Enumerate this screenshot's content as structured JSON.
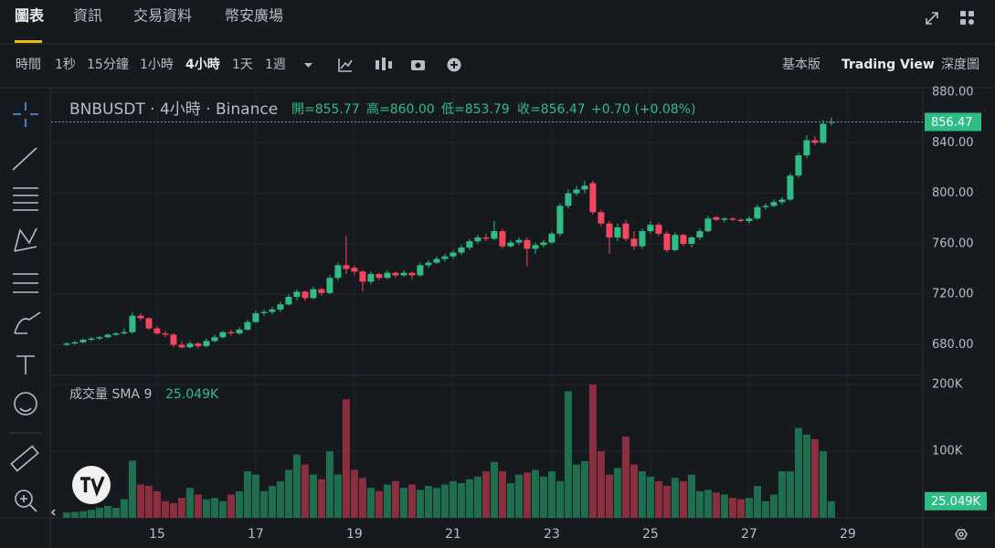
{
  "tabs": [
    "圖表",
    "資訊",
    "交易資料",
    "幣安廣場"
  ],
  "active_tab": 0,
  "intervals": [
    "時間",
    "1秒",
    "15分鐘",
    "1小時",
    "4小時",
    "1天",
    "1週"
  ],
  "active_interval": 4,
  "views": [
    "基本版",
    "Trading View",
    "深度圖"
  ],
  "active_view": 1,
  "chart_data": {
    "type": "candlestick",
    "legend": {
      "symbol": "BNBUSDT · 4小時 · Binance",
      "open": "開=855.77",
      "high": "高=860.00",
      "low": "低=853.79",
      "close": "收=856.47",
      "change": "+0.70 (+0.08%)"
    },
    "x": [
      13.167,
      13.333,
      13.5,
      13.667,
      13.833,
      14,
      14.167,
      14.333,
      14.5,
      14.667,
      14.833,
      15,
      15.167,
      15.333,
      15.5,
      15.667,
      15.833,
      16,
      16.167,
      16.333,
      16.5,
      16.667,
      16.833,
      17,
      17.167,
      17.333,
      17.5,
      17.667,
      17.833,
      18,
      18.167,
      18.333,
      18.5,
      18.667,
      18.833,
      19,
      19.167,
      19.333,
      19.5,
      19.667,
      19.833,
      20,
      20.167,
      20.333,
      20.5,
      20.667,
      20.833,
      21,
      21.167,
      21.333,
      21.5,
      21.667,
      21.833,
      22,
      22.167,
      22.333,
      22.5,
      22.667,
      22.833,
      23,
      23.167,
      23.333,
      23.5,
      23.667,
      23.833,
      24,
      24.167,
      24.333,
      24.5,
      24.667,
      24.833,
      25,
      25.167,
      25.333,
      25.5,
      25.667,
      25.833,
      26,
      26.167,
      26.333,
      26.5,
      26.667,
      26.833,
      27,
      27.167,
      27.333,
      27.5,
      27.667,
      27.833,
      28,
      28.167,
      28.333,
      28.5,
      28.667
    ],
    "xlim": [
      13.02,
      30.52
    ],
    "xticks": [
      15,
      17,
      19,
      21,
      23,
      25,
      27,
      29
    ],
    "candles": [
      [
        680,
        682,
        679,
        681
      ],
      [
        681,
        683,
        680,
        682
      ],
      [
        682,
        685,
        681,
        684
      ],
      [
        684,
        686,
        683,
        685
      ],
      [
        685,
        687,
        684,
        686
      ],
      [
        686,
        689,
        685,
        688
      ],
      [
        688,
        690,
        687,
        689
      ],
      [
        689,
        693,
        688,
        690
      ],
      [
        690,
        706,
        689,
        703
      ],
      [
        703,
        705,
        699,
        701
      ],
      [
        701,
        702,
        692,
        693
      ],
      [
        693,
        695,
        688,
        689
      ],
      [
        689,
        691,
        686,
        688
      ],
      [
        688,
        689,
        678,
        680
      ],
      [
        680,
        683,
        677,
        678
      ],
      [
        678,
        683,
        677,
        681
      ],
      [
        681,
        682,
        677,
        679
      ],
      [
        679,
        685,
        678,
        683
      ],
      [
        683,
        688,
        682,
        686
      ],
      [
        686,
        691,
        685,
        690
      ],
      [
        690,
        692,
        687,
        689
      ],
      [
        689,
        694,
        688,
        692
      ],
      [
        692,
        700,
        691,
        698
      ],
      [
        698,
        707,
        697,
        705
      ],
      [
        705,
        708,
        703,
        706
      ],
      [
        706,
        710,
        704,
        708
      ],
      [
        708,
        714,
        706,
        712
      ],
      [
        712,
        720,
        711,
        718
      ],
      [
        718,
        724,
        715,
        722
      ],
      [
        722,
        723,
        715,
        717
      ],
      [
        717,
        726,
        716,
        724
      ],
      [
        724,
        725,
        719,
        721
      ],
      [
        721,
        735,
        720,
        733
      ],
      [
        733,
        745,
        731,
        743
      ],
      [
        743,
        766,
        736,
        740
      ],
      [
        741,
        743,
        735,
        738
      ],
      [
        738,
        739,
        722,
        730
      ],
      [
        730,
        738,
        728,
        736
      ],
      [
        736,
        737,
        731,
        733
      ],
      [
        733,
        739,
        732,
        737
      ],
      [
        737,
        738,
        733,
        735
      ],
      [
        735,
        739,
        734,
        737
      ],
      [
        737,
        738,
        732,
        735
      ],
      [
        735,
        745,
        734,
        743
      ],
      [
        743,
        747,
        741,
        745
      ],
      [
        745,
        750,
        744,
        748
      ],
      [
        748,
        752,
        746,
        750
      ],
      [
        750,
        755,
        748,
        753
      ],
      [
        753,
        759,
        751,
        757
      ],
      [
        757,
        764,
        755,
        762
      ],
      [
        762,
        767,
        760,
        765
      ],
      [
        765,
        768,
        762,
        764
      ],
      [
        764,
        778,
        763,
        770
      ],
      [
        770,
        772,
        756,
        758
      ],
      [
        758,
        763,
        757,
        761
      ],
      [
        761,
        765,
        759,
        763
      ],
      [
        763,
        765,
        742,
        756
      ],
      [
        756,
        761,
        752,
        759
      ],
      [
        759,
        763,
        757,
        761
      ],
      [
        761,
        770,
        760,
        768
      ],
      [
        768,
        792,
        766,
        790
      ],
      [
        790,
        803,
        788,
        800
      ],
      [
        800,
        806,
        798,
        803
      ],
      [
        803,
        810,
        800,
        806
      ],
      [
        808,
        810,
        783,
        785
      ],
      [
        785,
        787,
        774,
        776
      ],
      [
        776,
        778,
        752,
        765
      ],
      [
        765,
        776,
        762,
        773
      ],
      [
        776,
        779,
        762,
        764
      ],
      [
        764,
        770,
        755,
        758
      ],
      [
        758,
        772,
        756,
        770
      ],
      [
        770,
        778,
        768,
        775
      ],
      [
        775,
        777,
        766,
        768
      ],
      [
        768,
        770,
        753,
        755
      ],
      [
        755,
        769,
        754,
        767
      ],
      [
        767,
        768,
        758,
        760
      ],
      [
        760,
        766,
        757,
        765
      ],
      [
        765,
        772,
        763,
        770
      ],
      [
        770,
        782,
        769,
        780
      ],
      [
        781,
        782,
        778,
        779
      ],
      [
        779,
        781,
        777,
        780
      ],
      [
        780,
        781,
        778,
        779
      ],
      [
        779,
        780,
        777,
        778
      ],
      [
        778,
        782,
        776,
        780
      ],
      [
        780,
        791,
        779,
        789
      ],
      [
        789,
        792,
        787,
        790
      ],
      [
        790,
        795,
        789,
        793
      ],
      [
        793,
        797,
        791,
        795
      ],
      [
        795,
        816,
        794,
        814
      ],
      [
        814,
        832,
        812,
        830
      ],
      [
        830,
        846,
        828,
        842
      ],
      [
        842,
        845,
        838,
        840
      ],
      [
        840,
        858,
        839,
        855
      ],
      [
        855.77,
        860,
        853.79,
        856.47
      ]
    ],
    "up_color": "#2ebd85",
    "down_color": "#f6465d",
    "ylim": [
      656.5,
      886.5
    ],
    "yticks": [
      {
        "value": 680,
        "label": "680.00"
      },
      {
        "value": 720,
        "label": "720.00"
      },
      {
        "value": 760,
        "label": "760.00"
      },
      {
        "value": 800,
        "label": "800.00"
      },
      {
        "value": 840,
        "label": "840.00"
      },
      {
        "value": 880,
        "label": "880.00"
      }
    ],
    "grid": true,
    "volume": {
      "title": "成交量 SMA 9",
      "values": [
        8,
        9,
        10,
        12,
        15,
        18,
        15,
        28,
        86,
        50,
        48,
        40,
        25,
        22,
        30,
        45,
        35,
        28,
        30,
        25,
        35,
        40,
        70,
        65,
        40,
        48,
        55,
        72,
        95,
        80,
        65,
        58,
        100,
        65,
        178,
        72,
        60,
        45,
        40,
        50,
        55,
        45,
        50,
        42,
        48,
        45,
        50,
        55,
        52,
        58,
        62,
        70,
        84,
        70,
        52,
        65,
        68,
        72,
        62,
        70,
        55,
        190,
        80,
        85,
        200,
        100,
        65,
        75,
        122,
        80,
        70,
        62,
        55,
        48,
        60,
        55,
        65,
        40,
        42,
        38,
        35,
        30,
        28,
        30,
        48,
        25,
        35,
        70,
        70,
        135,
        125,
        118,
        100,
        25.049
      ],
      "last_label": "25.049K",
      "ylim": [
        0,
        212.5
      ],
      "yticks": [
        {
          "value": 100,
          "label": "100K"
        },
        {
          "value": 200,
          "label": "200K"
        }
      ],
      "up_color": "#1f6e4f",
      "down_color": "#8b2e3d"
    }
  }
}
